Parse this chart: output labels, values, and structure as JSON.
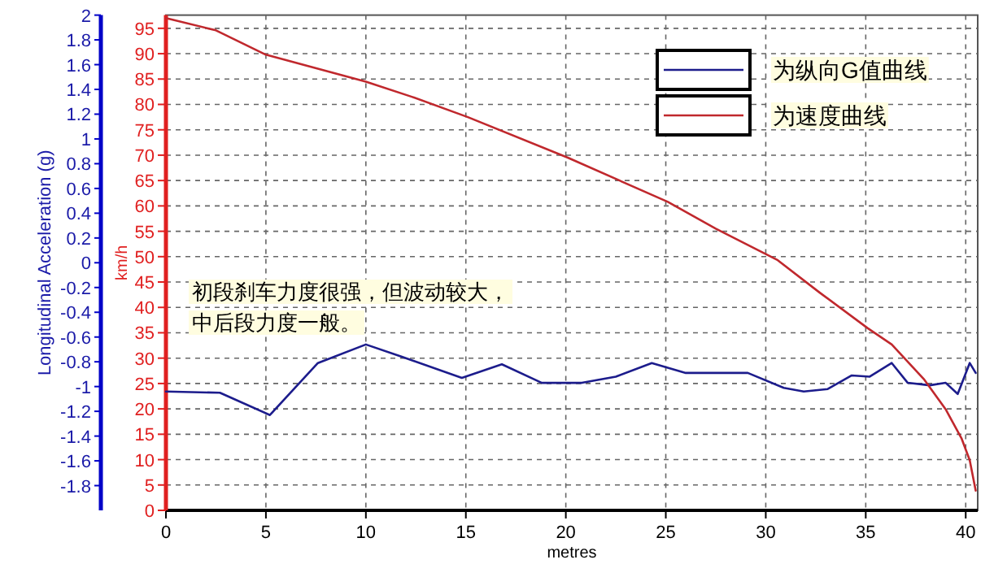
{
  "chart_data": {
    "type": "line",
    "xlabel": "metres",
    "ylabel": "Longitudinal Acceleration (g)",
    "y2label": "km/h",
    "xlim": [
      0,
      40.6
    ],
    "xticks": [
      0,
      5,
      10,
      15,
      20,
      25,
      30,
      35,
      40
    ],
    "ylim": [
      -2,
      2
    ],
    "yticks": [
      2,
      1.8,
      1.6,
      1.4,
      1.2,
      1,
      0.8,
      0.6,
      0.4,
      0.2,
      0,
      -0.2,
      -0.4,
      -0.6,
      -0.8,
      -1,
      -1.2,
      -1.4,
      -1.6,
      -1.8
    ],
    "y2lim": [
      0,
      97.6
    ],
    "y2ticks": [
      0,
      5,
      10,
      15,
      20,
      25,
      30,
      35,
      40,
      45,
      50,
      55,
      60,
      65,
      70,
      75,
      80,
      85,
      90,
      95
    ],
    "grid": true,
    "legend": "top right",
    "annotations": [
      "初段刹车力度很强，但波动较大，",
      "中后段力度一般。"
    ],
    "series": [
      {
        "name": "为纵向G值曲线",
        "color": "#1c1c8c",
        "x": [
          0,
          2.7,
          5.2,
          7.6,
          10,
          11.8,
          14.8,
          16.8,
          18.8,
          20.8,
          22.5,
          24.3,
          26,
          29.1,
          30.9,
          31.9,
          33.1,
          34.3,
          35.2,
          36.3,
          37.1,
          38.2,
          39,
          39.6,
          40.2,
          40.5
        ],
        "values": [
          -1.04,
          -1.05,
          -1.23,
          -0.81,
          -0.66,
          -0.76,
          -0.93,
          -0.82,
          -0.97,
          -0.97,
          -0.92,
          -0.81,
          -0.89,
          -0.89,
          -1.01,
          -1.04,
          -1.02,
          -0.91,
          -0.92,
          -0.81,
          -0.97,
          -0.99,
          -0.97,
          -1.06,
          -0.81,
          -0.89
        ]
      },
      {
        "name": "为速度曲线",
        "color": "#c0282d",
        "axis": "y2",
        "x": [
          0,
          2.5,
          5,
          10,
          12.3,
          15.1,
          20.1,
          25.1,
          27.5,
          30.6,
          32.7,
          35.1,
          36.3,
          37.9,
          39,
          39.8,
          40.2,
          40.5
        ],
        "values": [
          97,
          94.6,
          89.8,
          84.5,
          81.5,
          77.5,
          69.5,
          60.8,
          55.5,
          49.3,
          42.9,
          35.9,
          32.7,
          25.9,
          19.9,
          14.1,
          9.9,
          3.9
        ]
      }
    ]
  }
}
